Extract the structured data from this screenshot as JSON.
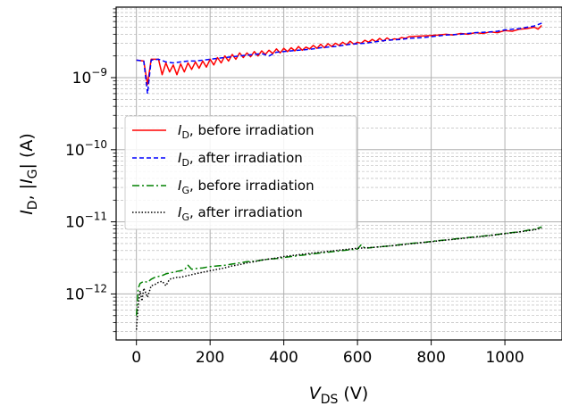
{
  "chart_data": {
    "type": "line",
    "xlabel": {
      "main": "V",
      "sub": "DS",
      "unit": " (V)"
    },
    "ylabel": {
      "p1": "I",
      "p1sub": "D",
      "p2": ", |",
      "p3": "I",
      "p3sub": "G",
      "p4": "| (A)"
    },
    "xlim": [
      -55,
      1155
    ],
    "ylim": [
      2.3e-13,
      9.5e-09
    ],
    "yscale": "log",
    "grid": "both (major solid, minor dashed)",
    "x_ticks": [
      {
        "value": 0,
        "label": "0"
      },
      {
        "value": 200,
        "label": "200"
      },
      {
        "value": 400,
        "label": "400"
      },
      {
        "value": 600,
        "label": "600"
      },
      {
        "value": 800,
        "label": "800"
      },
      {
        "value": 1000,
        "label": "1000"
      }
    ],
    "y_ticks": [
      {
        "value": 1e-12,
        "base": "10",
        "exp": "−12"
      },
      {
        "value": 1e-11,
        "base": "10",
        "exp": "−11"
      },
      {
        "value": 1e-10,
        "base": "10",
        "exp": "−10"
      },
      {
        "value": 1e-09,
        "base": "10",
        "exp": "−9"
      }
    ],
    "legend_position": "center-left",
    "series": [
      {
        "label": {
          "var": "I",
          "sub": "D",
          "rest": ", before irradiation"
        },
        "color": "#ff0000",
        "dash": "solid",
        "points": [
          [
            0,
            1.75e-09
          ],
          [
            20,
            1.7e-09
          ],
          [
            30,
            8e-10
          ],
          [
            40,
            1.8e-09
          ],
          [
            60,
            1.8e-09
          ],
          [
            70,
            1.1e-09
          ],
          [
            80,
            1.6e-09
          ],
          [
            90,
            1.2e-09
          ],
          [
            100,
            1.5e-09
          ],
          [
            110,
            1.1e-09
          ],
          [
            120,
            1.55e-09
          ],
          [
            130,
            1.2e-09
          ],
          [
            140,
            1.6e-09
          ],
          [
            150,
            1.3e-09
          ],
          [
            160,
            1.65e-09
          ],
          [
            170,
            1.35e-09
          ],
          [
            180,
            1.7e-09
          ],
          [
            190,
            1.4e-09
          ],
          [
            200,
            1.8e-09
          ],
          [
            210,
            1.5e-09
          ],
          [
            220,
            1.9e-09
          ],
          [
            230,
            1.6e-09
          ],
          [
            240,
            2e-09
          ],
          [
            250,
            1.7e-09
          ],
          [
            260,
            2.1e-09
          ],
          [
            270,
            1.8e-09
          ],
          [
            280,
            2.2e-09
          ],
          [
            290,
            1.9e-09
          ],
          [
            300,
            2.2e-09
          ],
          [
            310,
            1.95e-09
          ],
          [
            320,
            2.3e-09
          ],
          [
            330,
            2e-09
          ],
          [
            340,
            2.35e-09
          ],
          [
            350,
            2.1e-09
          ],
          [
            360,
            2.4e-09
          ],
          [
            370,
            2.15e-09
          ],
          [
            380,
            2.5e-09
          ],
          [
            390,
            2.2e-09
          ],
          [
            400,
            2.55e-09
          ],
          [
            410,
            2.3e-09
          ],
          [
            420,
            2.6e-09
          ],
          [
            430,
            2.35e-09
          ],
          [
            440,
            2.7e-09
          ],
          [
            450,
            2.4e-09
          ],
          [
            460,
            2.65e-09
          ],
          [
            470,
            2.5e-09
          ],
          [
            480,
            2.8e-09
          ],
          [
            490,
            2.55e-09
          ],
          [
            500,
            2.9e-09
          ],
          [
            510,
            2.6e-09
          ],
          [
            520,
            2.95e-09
          ],
          [
            530,
            2.7e-09
          ],
          [
            540,
            3e-09
          ],
          [
            550,
            2.8e-09
          ],
          [
            560,
            3.1e-09
          ],
          [
            570,
            2.85e-09
          ],
          [
            580,
            3.2e-09
          ],
          [
            590,
            2.9e-09
          ],
          [
            600,
            3.1e-09
          ],
          [
            610,
            3e-09
          ],
          [
            620,
            3.3e-09
          ],
          [
            630,
            3.1e-09
          ],
          [
            640,
            3.4e-09
          ],
          [
            650,
            3.15e-09
          ],
          [
            660,
            3.5e-09
          ],
          [
            670,
            3.2e-09
          ],
          [
            680,
            3.55e-09
          ],
          [
            690,
            3.3e-09
          ],
          [
            700,
            3.45e-09
          ],
          [
            710,
            3.4e-09
          ],
          [
            720,
            3.6e-09
          ],
          [
            730,
            3.5e-09
          ],
          [
            740,
            3.7e-09
          ],
          [
            760,
            3.75e-09
          ],
          [
            780,
            3.8e-09
          ],
          [
            800,
            3.85e-09
          ],
          [
            820,
            3.9e-09
          ],
          [
            840,
            4e-09
          ],
          [
            860,
            3.9e-09
          ],
          [
            880,
            4.1e-09
          ],
          [
            900,
            4e-09
          ],
          [
            920,
            4.2e-09
          ],
          [
            940,
            4.1e-09
          ],
          [
            960,
            4.3e-09
          ],
          [
            980,
            4.2e-09
          ],
          [
            1000,
            4.5e-09
          ],
          [
            1020,
            4.4e-09
          ],
          [
            1040,
            4.7e-09
          ],
          [
            1060,
            4.8e-09
          ],
          [
            1080,
            5e-09
          ],
          [
            1090,
            4.7e-09
          ],
          [
            1100,
            5.3e-09
          ]
        ]
      },
      {
        "label": {
          "var": "I",
          "sub": "D",
          "rest": ", after irradiation"
        },
        "color": "#0000ff",
        "dash": "5,3",
        "points": [
          [
            0,
            1.75e-09
          ],
          [
            20,
            1.7e-09
          ],
          [
            30,
            6e-10
          ],
          [
            40,
            1.75e-09
          ],
          [
            60,
            1.8e-09
          ],
          [
            80,
            1.65e-09
          ],
          [
            100,
            1.6e-09
          ],
          [
            120,
            1.65e-09
          ],
          [
            140,
            1.7e-09
          ],
          [
            160,
            1.7e-09
          ],
          [
            180,
            1.75e-09
          ],
          [
            200,
            1.8e-09
          ],
          [
            220,
            1.85e-09
          ],
          [
            240,
            1.9e-09
          ],
          [
            260,
            1.95e-09
          ],
          [
            280,
            2e-09
          ],
          [
            300,
            2.05e-09
          ],
          [
            320,
            2.1e-09
          ],
          [
            340,
            2.15e-09
          ],
          [
            360,
            2e-09
          ],
          [
            380,
            2.25e-09
          ],
          [
            400,
            2.3e-09
          ],
          [
            420,
            2.35e-09
          ],
          [
            440,
            2.4e-09
          ],
          [
            460,
            2.45e-09
          ],
          [
            480,
            2.5e-09
          ],
          [
            500,
            2.6e-09
          ],
          [
            520,
            2.65e-09
          ],
          [
            540,
            2.7e-09
          ],
          [
            560,
            2.8e-09
          ],
          [
            580,
            2.9e-09
          ],
          [
            600,
            2.95e-09
          ],
          [
            620,
            3e-09
          ],
          [
            640,
            3.1e-09
          ],
          [
            660,
            3.2e-09
          ],
          [
            680,
            3.3e-09
          ],
          [
            700,
            3.35e-09
          ],
          [
            720,
            3.4e-09
          ],
          [
            740,
            3.5e-09
          ],
          [
            760,
            3.55e-09
          ],
          [
            780,
            3.6e-09
          ],
          [
            800,
            3.7e-09
          ],
          [
            820,
            3.8e-09
          ],
          [
            840,
            3.9e-09
          ],
          [
            860,
            3.95e-09
          ],
          [
            880,
            4e-09
          ],
          [
            900,
            4.1e-09
          ],
          [
            920,
            4.2e-09
          ],
          [
            940,
            4.25e-09
          ],
          [
            960,
            4.3e-09
          ],
          [
            980,
            4.4e-09
          ],
          [
            1000,
            4.6e-09
          ],
          [
            1020,
            4.7e-09
          ],
          [
            1040,
            4.8e-09
          ],
          [
            1060,
            5e-09
          ],
          [
            1080,
            5.2e-09
          ],
          [
            1100,
            5.7e-09
          ]
        ]
      },
      {
        "label": {
          "var": "I",
          "sub": "G",
          "rest": ", before irradiation"
        },
        "color": "#008000",
        "dash": "8,3,2,3",
        "points": [
          [
            0,
            5e-13
          ],
          [
            5,
            1.2e-12
          ],
          [
            10,
            1.4e-12
          ],
          [
            20,
            1.5e-12
          ],
          [
            30,
            1.45e-12
          ],
          [
            40,
            1.6e-12
          ],
          [
            50,
            1.7e-12
          ],
          [
            60,
            1.75e-12
          ],
          [
            70,
            1.8e-12
          ],
          [
            80,
            1.9e-12
          ],
          [
            90,
            1.95e-12
          ],
          [
            100,
            2e-12
          ],
          [
            110,
            2.05e-12
          ],
          [
            120,
            2.1e-12
          ],
          [
            130,
            2.15e-12
          ],
          [
            140,
            2.5e-12
          ],
          [
            150,
            2.2e-12
          ],
          [
            160,
            2.25e-12
          ],
          [
            180,
            2.3e-12
          ],
          [
            200,
            2.4e-12
          ],
          [
            220,
            2.45e-12
          ],
          [
            240,
            2.5e-12
          ],
          [
            260,
            2.6e-12
          ],
          [
            280,
            2.7e-12
          ],
          [
            300,
            2.8e-12
          ],
          [
            320,
            2.85e-12
          ],
          [
            340,
            2.95e-12
          ],
          [
            360,
            3.05e-12
          ],
          [
            380,
            3.1e-12
          ],
          [
            400,
            3.2e-12
          ],
          [
            420,
            3.3e-12
          ],
          [
            440,
            3.4e-12
          ],
          [
            460,
            3.5e-12
          ],
          [
            480,
            3.6e-12
          ],
          [
            500,
            3.7e-12
          ],
          [
            520,
            3.8e-12
          ],
          [
            540,
            3.9e-12
          ],
          [
            560,
            4e-12
          ],
          [
            580,
            4.1e-12
          ],
          [
            600,
            4.2e-12
          ],
          [
            610,
            4.8e-12
          ],
          [
            620,
            4.3e-12
          ],
          [
            640,
            4.4e-12
          ],
          [
            660,
            4.5e-12
          ],
          [
            680,
            4.6e-12
          ],
          [
            700,
            4.7e-12
          ],
          [
            720,
            4.85e-12
          ],
          [
            740,
            5e-12
          ],
          [
            760,
            5.1e-12
          ],
          [
            780,
            5.2e-12
          ],
          [
            800,
            5.35e-12
          ],
          [
            820,
            5.5e-12
          ],
          [
            840,
            5.6e-12
          ],
          [
            860,
            5.75e-12
          ],
          [
            880,
            5.9e-12
          ],
          [
            900,
            6.05e-12
          ],
          [
            920,
            6.2e-12
          ],
          [
            940,
            6.35e-12
          ],
          [
            960,
            6.5e-12
          ],
          [
            980,
            6.7e-12
          ],
          [
            1000,
            6.9e-12
          ],
          [
            1020,
            7.1e-12
          ],
          [
            1040,
            7.3e-12
          ],
          [
            1060,
            7.6e-12
          ],
          [
            1080,
            7.9e-12
          ],
          [
            1100,
            8.5e-12
          ]
        ]
      },
      {
        "label": {
          "var": "I",
          "sub": "G",
          "rest": ", after irradiation"
        },
        "color": "#000000",
        "dash": "1.5,2",
        "points": [
          [
            0,
            3.2e-13
          ],
          [
            5,
            7e-13
          ],
          [
            10,
            1.1e-12
          ],
          [
            15,
            8e-13
          ],
          [
            20,
            1.2e-12
          ],
          [
            30,
            9e-13
          ],
          [
            40,
            1.3e-12
          ],
          [
            50,
            1.35e-12
          ],
          [
            60,
            1.45e-12
          ],
          [
            70,
            1.5e-12
          ],
          [
            80,
            1.3e-12
          ],
          [
            90,
            1.6e-12
          ],
          [
            100,
            1.65e-12
          ],
          [
            110,
            1.7e-12
          ],
          [
            120,
            1.7e-12
          ],
          [
            130,
            1.75e-12
          ],
          [
            140,
            1.8e-12
          ],
          [
            150,
            1.85e-12
          ],
          [
            160,
            1.9e-12
          ],
          [
            180,
            2e-12
          ],
          [
            200,
            2.1e-12
          ],
          [
            220,
            2.2e-12
          ],
          [
            240,
            2.3e-12
          ],
          [
            260,
            2.45e-12
          ],
          [
            280,
            2.55e-12
          ],
          [
            300,
            2.7e-12
          ],
          [
            320,
            2.8e-12
          ],
          [
            340,
            2.95e-12
          ],
          [
            360,
            3.05e-12
          ],
          [
            380,
            3.15e-12
          ],
          [
            400,
            3.3e-12
          ],
          [
            420,
            3.4e-12
          ],
          [
            440,
            3.5e-12
          ],
          [
            460,
            3.6e-12
          ],
          [
            480,
            3.7e-12
          ],
          [
            500,
            3.8e-12
          ],
          [
            520,
            3.9e-12
          ],
          [
            540,
            4e-12
          ],
          [
            560,
            4.1e-12
          ],
          [
            580,
            4.2e-12
          ],
          [
            600,
            4.3e-12
          ],
          [
            620,
            4.35e-12
          ],
          [
            640,
            4.4e-12
          ],
          [
            660,
            4.5e-12
          ],
          [
            680,
            4.6e-12
          ],
          [
            700,
            4.7e-12
          ],
          [
            720,
            4.8e-12
          ],
          [
            740,
            4.95e-12
          ],
          [
            760,
            5.05e-12
          ],
          [
            780,
            5.2e-12
          ],
          [
            800,
            5.3e-12
          ],
          [
            820,
            5.45e-12
          ],
          [
            840,
            5.6e-12
          ],
          [
            860,
            5.7e-12
          ],
          [
            880,
            5.85e-12
          ],
          [
            900,
            6e-12
          ],
          [
            920,
            6.15e-12
          ],
          [
            940,
            6.3e-12
          ],
          [
            960,
            6.45e-12
          ],
          [
            980,
            6.65e-12
          ],
          [
            1000,
            6.85e-12
          ],
          [
            1020,
            7.05e-12
          ],
          [
            1040,
            7.25e-12
          ],
          [
            1060,
            7.5e-12
          ],
          [
            1080,
            7.75e-12
          ],
          [
            1100,
            8.2e-12
          ]
        ]
      }
    ]
  }
}
